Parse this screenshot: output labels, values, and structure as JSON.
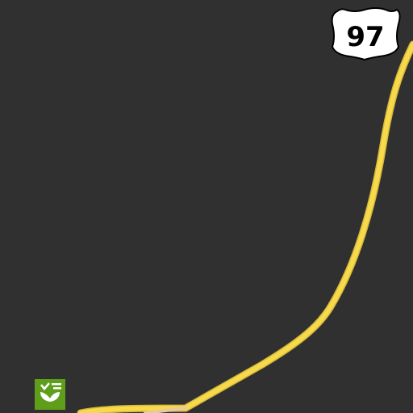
{
  "map": {
    "background_color": "#303030",
    "road_color": "#f7d94c",
    "road_edge_color": "#e6c23a",
    "route_shield": {
      "type": "US highway",
      "number": "97",
      "icon": "us-route-shield-icon"
    },
    "poi": {
      "icon": "garden-center-icon",
      "color": "#5e9e1a"
    }
  }
}
